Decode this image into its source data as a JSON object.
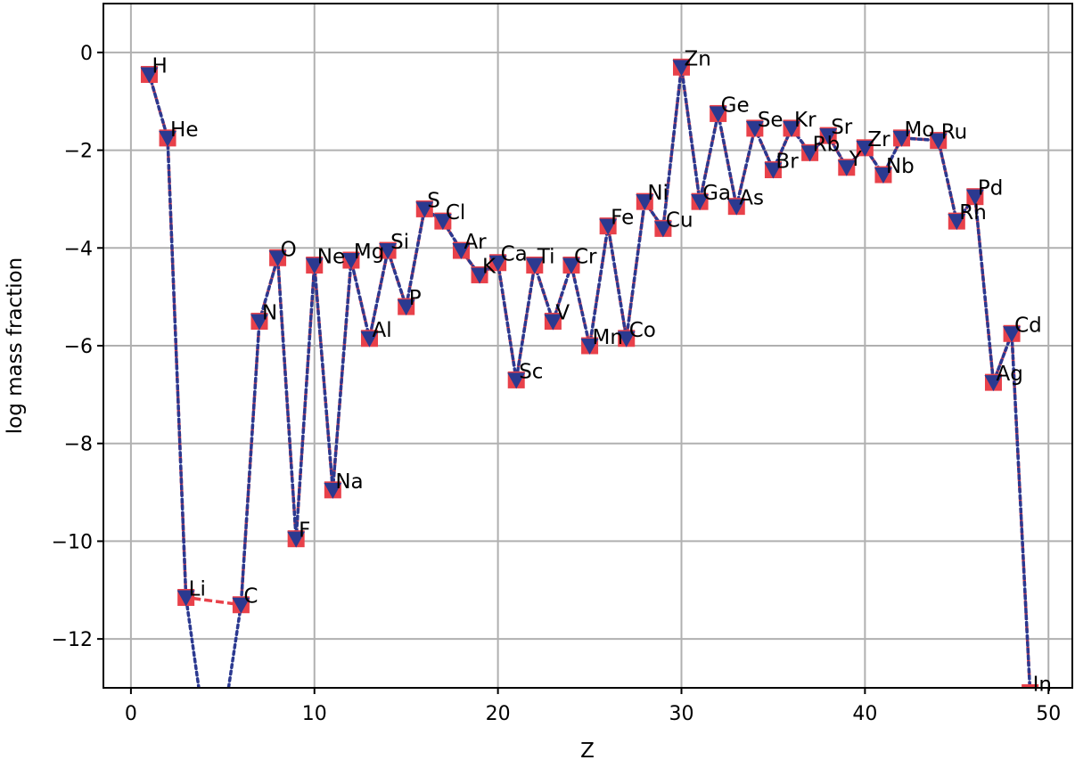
{
  "chart_data": {
    "type": "line",
    "title": "",
    "xlabel": "Z",
    "ylabel": "log mass fraction",
    "xlim": [
      -1.5,
      51.3
    ],
    "ylim": [
      -13,
      1
    ],
    "xticks": [
      0,
      10,
      20,
      30,
      40,
      50
    ],
    "yticks": [
      0,
      -2,
      -4,
      -6,
      -8,
      -10,
      -12
    ],
    "ytick_labels": [
      "0",
      "−2",
      "−4",
      "−6",
      "−8",
      "−10",
      "−12"
    ],
    "xtick_labels": [
      "0",
      "10",
      "20",
      "30",
      "40",
      "50"
    ],
    "grid": true,
    "series": [
      {
        "marker": "square",
        "color": "#e8414a",
        "linestyle": "dashed",
        "points": [
          {
            "z": 1,
            "y": -0.45
          },
          {
            "z": 2,
            "y": -1.75
          },
          {
            "z": 3,
            "y": -11.15
          },
          {
            "z": 6,
            "y": -11.3
          },
          {
            "z": 7,
            "y": -5.5
          },
          {
            "z": 8,
            "y": -4.2
          },
          {
            "z": 9,
            "y": -9.95
          },
          {
            "z": 10,
            "y": -4.35
          },
          {
            "z": 11,
            "y": -8.95
          },
          {
            "z": 12,
            "y": -4.25
          },
          {
            "z": 13,
            "y": -5.85
          },
          {
            "z": 14,
            "y": -4.05
          },
          {
            "z": 15,
            "y": -5.2
          },
          {
            "z": 16,
            "y": -3.2
          },
          {
            "z": 17,
            "y": -3.45
          },
          {
            "z": 18,
            "y": -4.05
          },
          {
            "z": 19,
            "y": -4.55
          },
          {
            "z": 20,
            "y": -4.3
          },
          {
            "z": 21,
            "y": -6.7
          },
          {
            "z": 22,
            "y": -4.35
          },
          {
            "z": 23,
            "y": -5.5
          },
          {
            "z": 24,
            "y": -4.35
          },
          {
            "z": 25,
            "y": -6.0
          },
          {
            "z": 26,
            "y": -3.55
          },
          {
            "z": 27,
            "y": -5.85
          },
          {
            "z": 28,
            "y": -3.05
          },
          {
            "z": 29,
            "y": -3.6
          },
          {
            "z": 30,
            "y": -0.3
          },
          {
            "z": 31,
            "y": -3.05
          },
          {
            "z": 32,
            "y": -1.25
          },
          {
            "z": 33,
            "y": -3.15
          },
          {
            "z": 34,
            "y": -1.55
          },
          {
            "z": 35,
            "y": -2.4
          },
          {
            "z": 36,
            "y": -1.55
          },
          {
            "z": 37,
            "y": -2.05
          },
          {
            "z": 38,
            "y": -1.7
          },
          {
            "z": 39,
            "y": -2.35
          },
          {
            "z": 40,
            "y": -1.95
          },
          {
            "z": 41,
            "y": -2.5
          },
          {
            "z": 42,
            "y": -1.75
          },
          {
            "z": 44,
            "y": -1.8
          },
          {
            "z": 45,
            "y": -3.45
          },
          {
            "z": 46,
            "y": -2.95
          },
          {
            "z": 47,
            "y": -6.75
          },
          {
            "z": 48,
            "y": -5.75
          },
          {
            "z": 49,
            "y": -13.1
          }
        ]
      },
      {
        "marker": "triangle-down",
        "color": "#2b3990",
        "linestyle": "dotted",
        "points": [
          {
            "z": 1,
            "y": -0.45
          },
          {
            "z": 2,
            "y": -1.75
          },
          {
            "z": 3,
            "y": -11.15
          },
          {
            "z": 4,
            "y": -13.8
          },
          {
            "z": 5,
            "y": -13.8
          },
          {
            "z": 6,
            "y": -11.3
          },
          {
            "z": 7,
            "y": -5.5
          },
          {
            "z": 8,
            "y": -4.2
          },
          {
            "z": 9,
            "y": -9.95
          },
          {
            "z": 10,
            "y": -4.35
          },
          {
            "z": 11,
            "y": -8.95
          },
          {
            "z": 12,
            "y": -4.25
          },
          {
            "z": 13,
            "y": -5.85
          },
          {
            "z": 14,
            "y": -4.05
          },
          {
            "z": 15,
            "y": -5.2
          },
          {
            "z": 16,
            "y": -3.2
          },
          {
            "z": 17,
            "y": -3.45
          },
          {
            "z": 18,
            "y": -4.05
          },
          {
            "z": 19,
            "y": -4.55
          },
          {
            "z": 20,
            "y": -4.3
          },
          {
            "z": 21,
            "y": -6.7
          },
          {
            "z": 22,
            "y": -4.35
          },
          {
            "z": 23,
            "y": -5.5
          },
          {
            "z": 24,
            "y": -4.35
          },
          {
            "z": 25,
            "y": -6.0
          },
          {
            "z": 26,
            "y": -3.55
          },
          {
            "z": 27,
            "y": -5.85
          },
          {
            "z": 28,
            "y": -3.05
          },
          {
            "z": 29,
            "y": -3.6
          },
          {
            "z": 30,
            "y": -0.3
          },
          {
            "z": 31,
            "y": -3.05
          },
          {
            "z": 32,
            "y": -1.25
          },
          {
            "z": 33,
            "y": -3.15
          },
          {
            "z": 34,
            "y": -1.55
          },
          {
            "z": 35,
            "y": -2.4
          },
          {
            "z": 36,
            "y": -1.55
          },
          {
            "z": 37,
            "y": -2.05
          },
          {
            "z": 38,
            "y": -1.7
          },
          {
            "z": 39,
            "y": -2.35
          },
          {
            "z": 40,
            "y": -1.95
          },
          {
            "z": 41,
            "y": -2.5
          },
          {
            "z": 42,
            "y": -1.75
          },
          {
            "z": 44,
            "y": -1.8
          },
          {
            "z": 45,
            "y": -3.45
          },
          {
            "z": 46,
            "y": -2.95
          },
          {
            "z": 47,
            "y": -6.75
          },
          {
            "z": 48,
            "y": -5.75
          },
          {
            "z": 49,
            "y": -13.1
          }
        ]
      }
    ],
    "annotations": [
      {
        "text": "H",
        "z": 1,
        "y": -0.45
      },
      {
        "text": "He",
        "z": 2,
        "y": -1.75
      },
      {
        "text": "Li",
        "z": 3,
        "y": -11.15
      },
      {
        "text": "C",
        "z": 6,
        "y": -11.3
      },
      {
        "text": "N",
        "z": 7,
        "y": -5.5
      },
      {
        "text": "O",
        "z": 8,
        "y": -4.2
      },
      {
        "text": "F",
        "z": 9,
        "y": -9.95
      },
      {
        "text": "Ne",
        "z": 10,
        "y": -4.35
      },
      {
        "text": "Na",
        "z": 11,
        "y": -8.95
      },
      {
        "text": "Mg",
        "z": 12,
        "y": -4.25
      },
      {
        "text": "Al",
        "z": 13,
        "y": -5.85
      },
      {
        "text": "Si",
        "z": 14,
        "y": -4.05
      },
      {
        "text": "P",
        "z": 15,
        "y": -5.2
      },
      {
        "text": "S",
        "z": 16,
        "y": -3.2
      },
      {
        "text": "Cl",
        "z": 17,
        "y": -3.45
      },
      {
        "text": "Ar",
        "z": 18,
        "y": -4.05
      },
      {
        "text": "K",
        "z": 19,
        "y": -4.55
      },
      {
        "text": "Ca",
        "z": 20,
        "y": -4.3
      },
      {
        "text": "Sc",
        "z": 21,
        "y": -6.7
      },
      {
        "text": "Ti",
        "z": 22,
        "y": -4.35
      },
      {
        "text": "V",
        "z": 23,
        "y": -5.5
      },
      {
        "text": "Cr",
        "z": 24,
        "y": -4.35
      },
      {
        "text": "Mn",
        "z": 25,
        "y": -6.0
      },
      {
        "text": "Fe",
        "z": 26,
        "y": -3.55
      },
      {
        "text": "Co",
        "z": 27,
        "y": -5.85
      },
      {
        "text": "Ni",
        "z": 28,
        "y": -3.05
      },
      {
        "text": "Cu",
        "z": 29,
        "y": -3.6
      },
      {
        "text": "Zn",
        "z": 30,
        "y": -0.3
      },
      {
        "text": "Ga",
        "z": 31,
        "y": -3.05
      },
      {
        "text": "Ge",
        "z": 32,
        "y": -1.25
      },
      {
        "text": "As",
        "z": 33,
        "y": -3.15
      },
      {
        "text": "Se",
        "z": 34,
        "y": -1.55
      },
      {
        "text": "Br",
        "z": 35,
        "y": -2.4
      },
      {
        "text": "Kr",
        "z": 36,
        "y": -1.55
      },
      {
        "text": "Rb",
        "z": 37,
        "y": -2.05
      },
      {
        "text": "Sr",
        "z": 38,
        "y": -1.7
      },
      {
        "text": "Y",
        "z": 39,
        "y": -2.35
      },
      {
        "text": "Zr",
        "z": 40,
        "y": -1.95
      },
      {
        "text": "Nb",
        "z": 41,
        "y": -2.5
      },
      {
        "text": "Mo",
        "z": 42,
        "y": -1.75
      },
      {
        "text": "Ru",
        "z": 44,
        "y": -1.8
      },
      {
        "text": "Rh",
        "z": 45,
        "y": -3.45
      },
      {
        "text": "Pd",
        "z": 46,
        "y": -2.95
      },
      {
        "text": "Ag",
        "z": 47,
        "y": -6.75
      },
      {
        "text": "Cd",
        "z": 48,
        "y": -5.75
      },
      {
        "text": "In",
        "z": 49,
        "y": -13.1
      }
    ]
  }
}
